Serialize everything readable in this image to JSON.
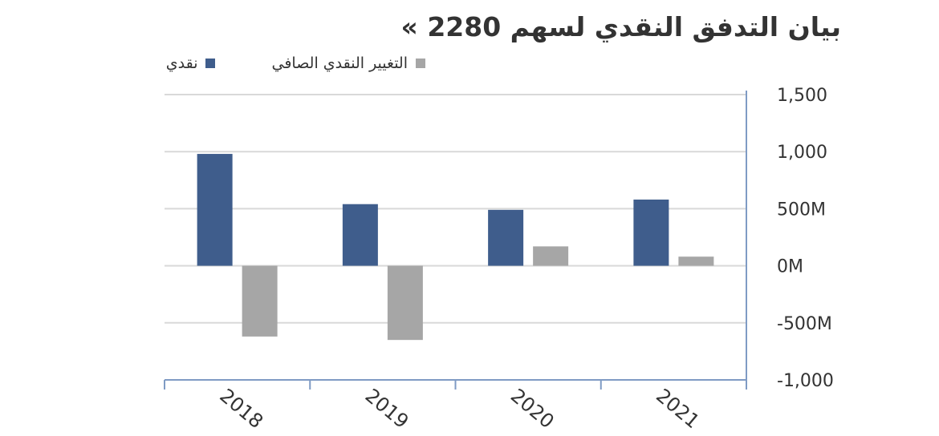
{
  "title": "بيان التدفق النقدي لسهم 2280 »",
  "colors": {
    "cash": "#3f5d8c",
    "net_change": "#a6a6a6",
    "grid": "#d9d9d9",
    "axis": "#7f9bc4"
  },
  "chart_data": {
    "type": "bar",
    "title": "بيان التدفق النقدي لسهم 2280 »",
    "categories": [
      "2018",
      "2019",
      "2020",
      "2021"
    ],
    "series": [
      {
        "name": "نقدي",
        "values": [
          980,
          540,
          490,
          580
        ]
      },
      {
        "name": "التغيير النقدي الصافي",
        "values": [
          -620,
          -650,
          170,
          80
        ]
      }
    ],
    "yticks": [
      "1,500",
      "1,000",
      "500M",
      "0M",
      "-500M",
      "-1,000"
    ],
    "ylim": [
      -1000,
      1500
    ],
    "grid": true,
    "legend_position": "top-left",
    "y_axis_side": "right"
  }
}
